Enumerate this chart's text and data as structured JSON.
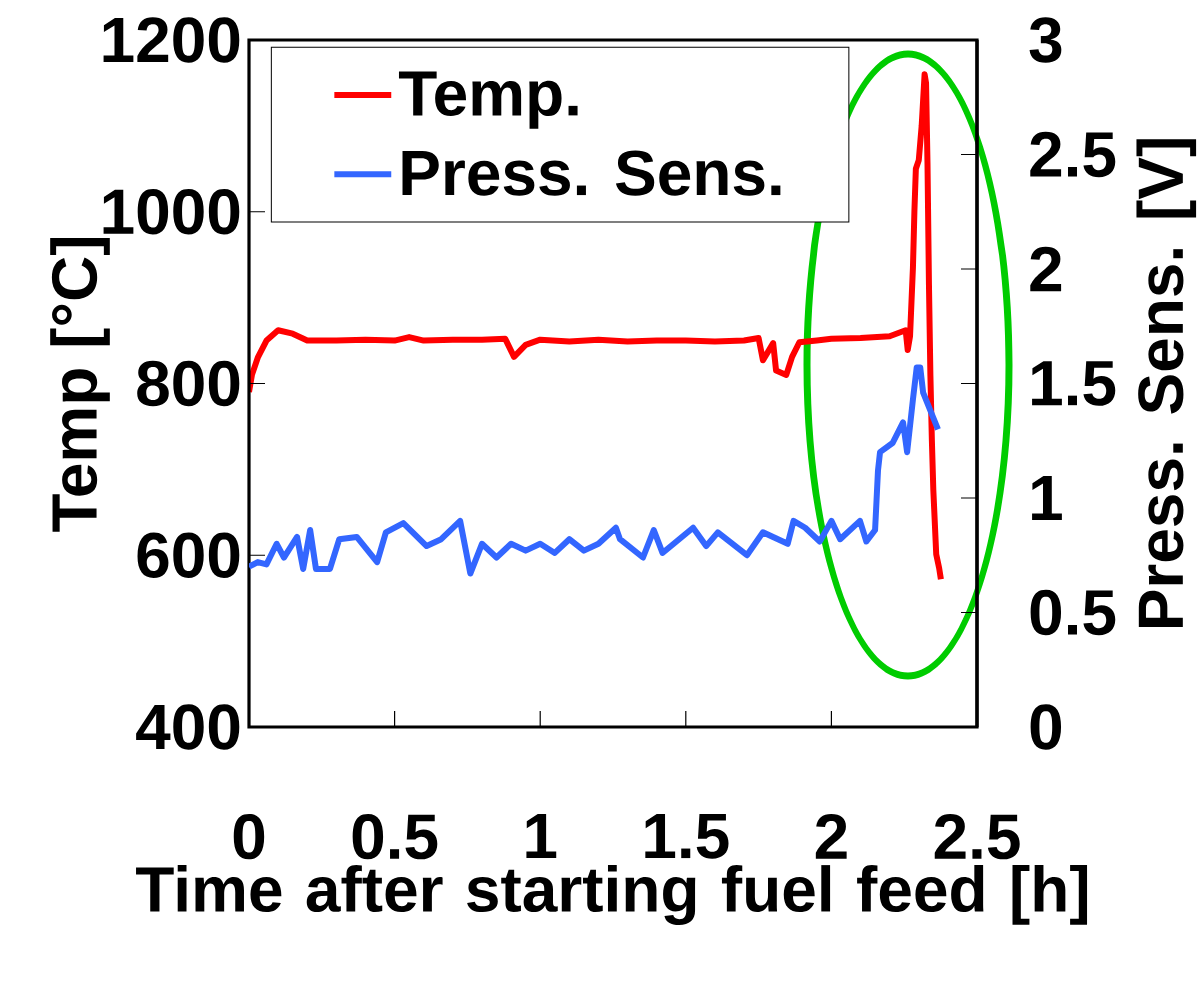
{
  "chart_data": {
    "type": "line",
    "xlabel": "Time after starting fuel feed [h]",
    "ylabel": "Temp [°C]",
    "y2label": "Press. Sens. [V]",
    "xlim": [
      0,
      2.5
    ],
    "xticks": [
      0,
      0.5,
      1,
      1.5,
      2,
      2.5
    ],
    "ylim": [
      400,
      1200
    ],
    "yticks": [
      400,
      600,
      800,
      1000,
      1200
    ],
    "y2lim": [
      0,
      3
    ],
    "y2ticks": [
      0,
      0.5,
      1,
      1.5,
      2,
      2.5,
      3
    ],
    "legend": "top left",
    "series": [
      {
        "name": "Temp.",
        "color": "#ff0000",
        "x": [
          0,
          0.01,
          0.03,
          0.06,
          0.1,
          0.15,
          0.2,
          0.3,
          0.4,
          0.5,
          0.55,
          0.6,
          0.7,
          0.8,
          0.88,
          0.91,
          0.95,
          1.0,
          1.1,
          1.2,
          1.3,
          1.4,
          1.5,
          1.6,
          1.7,
          1.75,
          1.765,
          1.8,
          1.81,
          1.845,
          1.865,
          1.89,
          1.95,
          2.0,
          2.1,
          2.2,
          2.255,
          2.262,
          2.27,
          2.28,
          2.285,
          2.29,
          2.3,
          2.31,
          2.32,
          2.325,
          2.33,
          2.335,
          2.34,
          2.345,
          2.35,
          2.36,
          2.37,
          2.376
        ],
        "values": [
          790,
          810,
          830,
          850,
          862,
          858,
          850,
          850,
          851,
          850,
          854,
          850,
          851,
          851,
          852,
          831,
          845,
          851,
          849,
          851,
          849,
          850,
          850,
          849,
          850,
          853,
          827,
          847,
          815,
          810,
          831,
          848,
          850,
          852,
          853,
          855,
          862,
          839,
          855,
          935,
          1000,
          1050,
          1060,
          1100,
          1160,
          1150,
          1056,
          915,
          809,
          734,
          676,
          601,
          585,
          572
        ]
      },
      {
        "name": "Press. Sens.",
        "color": "#3366ff",
        "axis": "y2",
        "x": [
          0,
          0.03,
          0.06,
          0.095,
          0.12,
          0.165,
          0.186,
          0.21,
          0.23,
          0.278,
          0.31,
          0.37,
          0.44,
          0.47,
          0.53,
          0.61,
          0.66,
          0.725,
          0.76,
          0.8,
          0.85,
          0.9,
          0.95,
          1.0,
          1.05,
          1.1,
          1.15,
          1.2,
          1.26,
          1.274,
          1.353,
          1.39,
          1.42,
          1.525,
          1.57,
          1.61,
          1.71,
          1.765,
          1.85,
          1.87,
          1.91,
          1.96,
          2.0,
          2.03,
          2.098,
          2.12,
          2.15,
          2.155,
          2.16,
          2.167,
          2.21,
          2.246,
          2.26,
          2.28,
          2.293,
          2.305,
          2.315,
          2.35,
          2.366
        ],
        "values": [
          0.7,
          0.72,
          0.71,
          0.8,
          0.74,
          0.83,
          0.69,
          0.86,
          0.69,
          0.69,
          0.82,
          0.83,
          0.72,
          0.85,
          0.89,
          0.79,
          0.82,
          0.9,
          0.67,
          0.8,
          0.74,
          0.8,
          0.77,
          0.8,
          0.76,
          0.82,
          0.77,
          0.8,
          0.87,
          0.82,
          0.74,
          0.86,
          0.76,
          0.87,
          0.79,
          0.85,
          0.75,
          0.85,
          0.8,
          0.9,
          0.87,
          0.81,
          0.9,
          0.82,
          0.9,
          0.81,
          0.86,
          0.99,
          1.12,
          1.2,
          1.24,
          1.33,
          1.2,
          1.43,
          1.57,
          1.57,
          1.46,
          1.35,
          1.3
        ]
      }
    ]
  }
}
